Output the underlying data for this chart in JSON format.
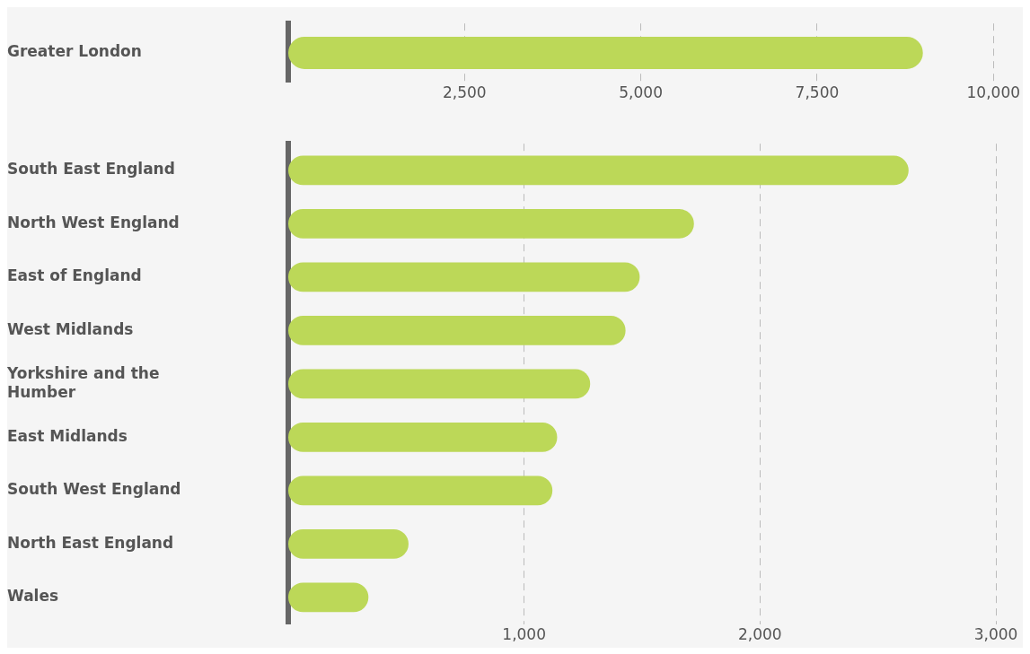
{
  "chart_data": [
    {
      "type": "bar",
      "orientation": "horizontal",
      "categories": [
        "Greater London"
      ],
      "values": [
        9000
      ],
      "color": "#bcd858",
      "xlim": [
        0,
        10000
      ],
      "xticks": [
        {
          "value": 2500,
          "label": "2,500"
        },
        {
          "value": 5000,
          "label": "5,000"
        },
        {
          "value": 7500,
          "label": "7,500"
        },
        {
          "value": 10000,
          "label": "10,000"
        }
      ],
      "grid": "x",
      "legend": false
    },
    {
      "type": "bar",
      "orientation": "horizontal",
      "categories": [
        "South East England",
        "North West England",
        "East of England",
        "West Midlands",
        "Yorkshire and the Humber",
        "East Midlands",
        "South West England",
        "North East England",
        "Wales"
      ],
      "values": [
        2630,
        1720,
        1490,
        1430,
        1280,
        1140,
        1120,
        510,
        340
      ],
      "color": "#bcd858",
      "xlim": [
        0,
        3000
      ],
      "xticks": [
        {
          "value": 1000,
          "label": "1,000"
        },
        {
          "value": 2000,
          "label": "2,000"
        },
        {
          "value": 3000,
          "label": "3,000"
        }
      ],
      "grid": "x",
      "legend": false
    }
  ]
}
